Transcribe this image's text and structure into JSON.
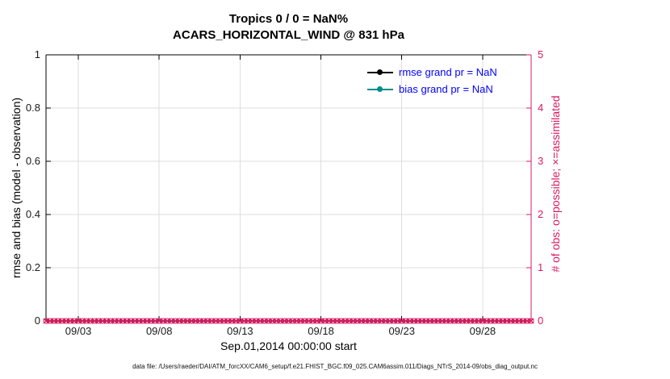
{
  "footer": {
    "data_file": "data file: /Users/raeder/DAI/ATM_forcXX/CAM6_setup/f.e21.FHIST_BGC.f09_025.CAM6assim.011/Diags_NTrS_2014-09/obs_diag_output.nc"
  },
  "chart_data": {
    "type": "line",
    "title": "Tropics 0 / 0 = NaN%",
    "subtitle": "ACARS_HORIZONTAL_WIND @ 831 hPa",
    "xlabel": "Sep.01,2014 00:00:00 start",
    "grid": true,
    "x_axis": {
      "range_days": [
        0,
        30
      ],
      "start_date": "Sep.01,2014 00:00:00",
      "tick_days": [
        2,
        7,
        12,
        17,
        22,
        27
      ],
      "tick_labels": [
        "09/03",
        "09/08",
        "09/13",
        "09/18",
        "09/23",
        "09/28"
      ]
    },
    "left_axis": {
      "label": "rmse and bias (model - observation)",
      "lim": [
        0,
        1
      ],
      "ticks": [
        0,
        0.2,
        0.4,
        0.6,
        0.8,
        1
      ],
      "tick_labels": [
        "0",
        "0.2",
        "0.4",
        "0.6",
        "0.8",
        "1"
      ],
      "color": "#000000"
    },
    "right_axis": {
      "label": "# of obs: o=possible; ×=assimilated",
      "lim": [
        0,
        5
      ],
      "ticks": [
        0,
        1,
        2,
        3,
        4,
        5
      ],
      "tick_labels": [
        "0",
        "1",
        "2",
        "3",
        "4",
        "5"
      ],
      "color": "#d81b60"
    },
    "legend": {
      "position": "top-right-inside",
      "text_color": "#0000ff",
      "entries": [
        {
          "label": "rmse grand pr = NaN",
          "color": "#000000",
          "marker": "filled-circle"
        },
        {
          "label": "bias grand pr = NaN",
          "color": "#008c8c",
          "marker": "filled-circle"
        }
      ]
    },
    "series": [
      {
        "name": "rmse",
        "axis": "left",
        "color": "#000000",
        "values": "NaN (no line plotted)"
      },
      {
        "name": "bias",
        "axis": "left",
        "color": "#008c8c",
        "values": "NaN (no line plotted)"
      },
      {
        "name": "obs possible (o)",
        "axis": "right",
        "color": "#d81b60",
        "marker": "o",
        "constant_value": 0,
        "time_step_days": 0.25
      },
      {
        "name": "obs assimilated (x)",
        "axis": "right",
        "color": "#d81b60",
        "marker": "x",
        "constant_value": 0,
        "time_step_days": 0.25
      }
    ],
    "grid_color": "#dedede"
  }
}
